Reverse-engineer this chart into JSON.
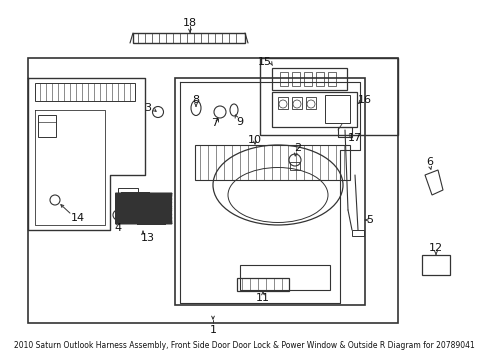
{
  "title": "2010 Saturn Outlook Harness Assembly, Front Side Door Door Lock & Power Window & Outside R Diagram for 20789041",
  "bg_color": "#ffffff",
  "line_color": "#333333",
  "text_color": "#111111",
  "fig_width": 4.89,
  "fig_height": 3.6,
  "dpi": 100
}
